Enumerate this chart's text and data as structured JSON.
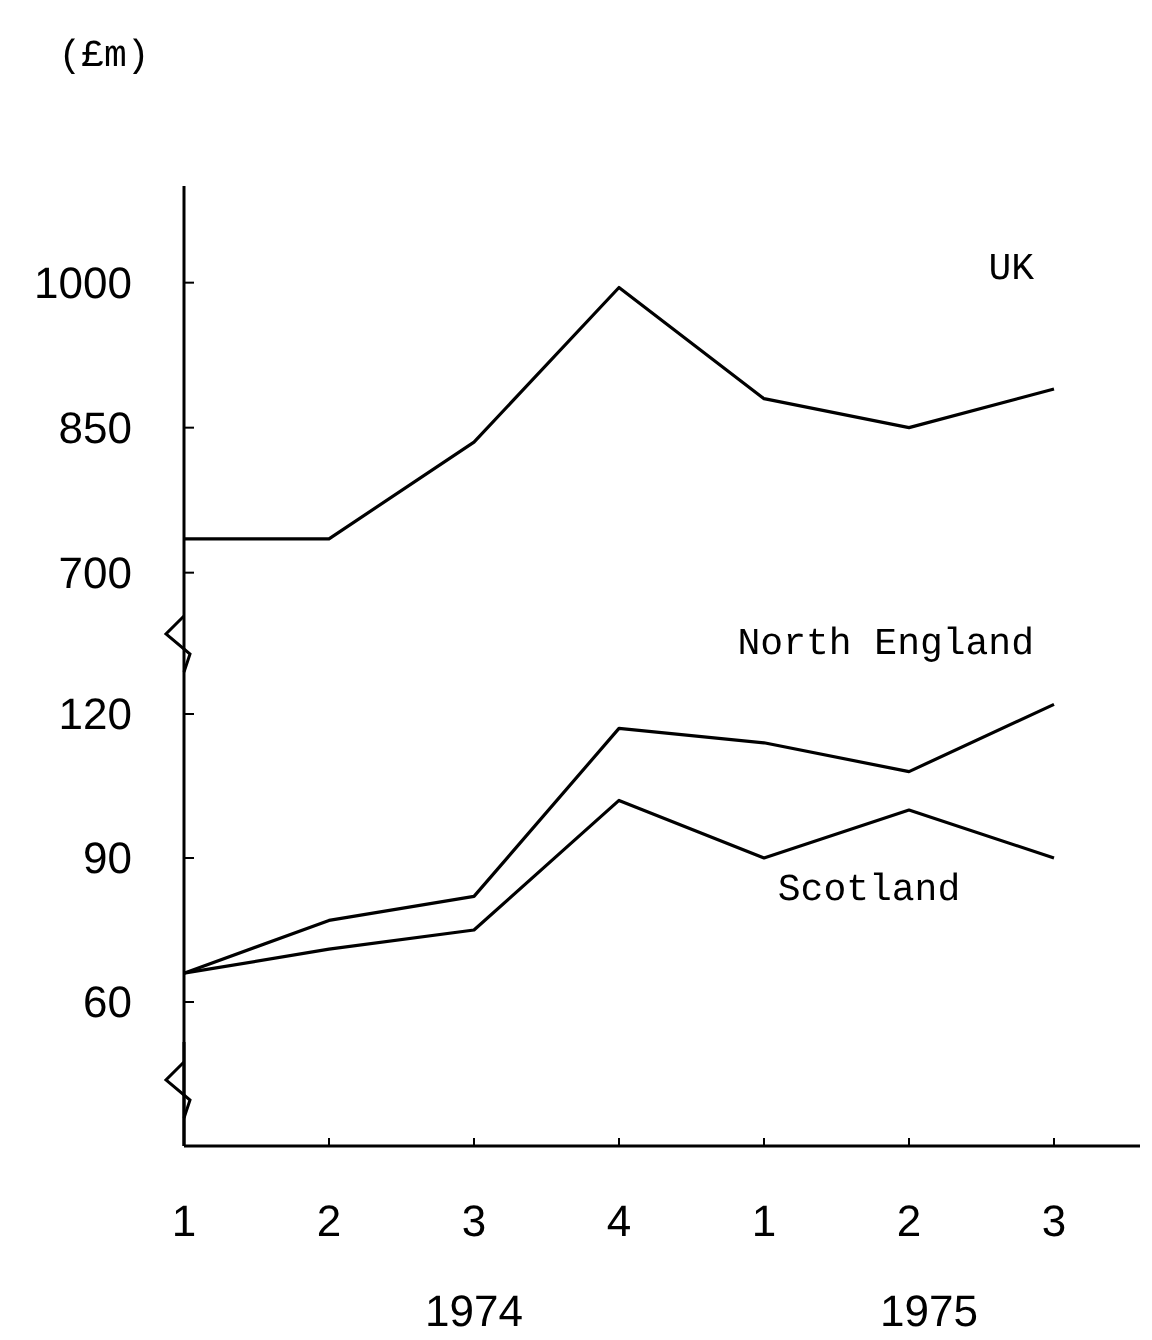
{
  "chart_data": [
    {
      "type": "line",
      "ylabel": "(£m)",
      "ylim": [
        680,
        1100
      ],
      "yticks": [
        700,
        850,
        1000
      ],
      "tick_labels": "y",
      "grid": false,
      "marker": "none",
      "line_style": "solid",
      "series": [
        {
          "name": "UK",
          "color": "#000000",
          "values": [
            735,
            735,
            835,
            995,
            880,
            850,
            890
          ]
        }
      ]
    },
    {
      "type": "line",
      "categories": [
        "1",
        "2",
        "3",
        "4",
        "1",
        "2",
        "3"
      ],
      "ylim": [
        30,
        135
      ],
      "yticks": [
        60,
        90,
        120
      ],
      "grid": false,
      "marker": "none",
      "line_style": "solid",
      "annotations": [
        "1974",
        "1975"
      ],
      "series": [
        {
          "name": "North England",
          "color": "#000000",
          "values": [
            66,
            77,
            82,
            117,
            114,
            108,
            122
          ]
        },
        {
          "name": "Scotland",
          "color": "#000000",
          "values": [
            66,
            71,
            75,
            102,
            90,
            100,
            90
          ]
        }
      ]
    }
  ]
}
